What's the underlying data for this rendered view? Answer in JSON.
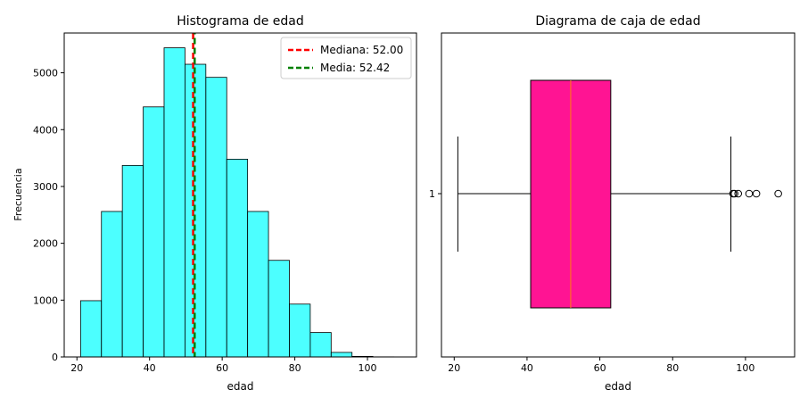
{
  "chart_data": [
    {
      "type": "bar",
      "title": "Histograma de edad",
      "xlabel": "edad",
      "ylabel": "Frecuencia",
      "xlim": [
        16.5,
        113.5
      ],
      "ylim": [
        0,
        5700
      ],
      "xticks": [
        20,
        40,
        60,
        80,
        100
      ],
      "yticks": [
        0,
        1000,
        2000,
        3000,
        4000,
        5000
      ],
      "bin_edges": [
        21,
        26.75,
        32.5,
        38.25,
        44,
        49.75,
        55.5,
        61.25,
        67,
        72.75,
        78.5,
        84.25,
        90,
        95.75,
        101.5,
        107.25,
        113
      ],
      "values": [
        990,
        2560,
        3370,
        4400,
        5440,
        5150,
        4920,
        3480,
        2560,
        1700,
        930,
        430,
        80,
        10,
        2,
        1
      ],
      "bar_color": "#00ffff",
      "median_line": {
        "value": 52.0,
        "color": "#ff0000"
      },
      "mean_line": {
        "value": 52.42,
        "color": "#008000"
      },
      "legend": {
        "position": "top-right",
        "entries": [
          "Mediana: 52.00",
          "Media: 52.42"
        ]
      }
    },
    {
      "type": "box",
      "title": "Diagrama de caja de edad",
      "xlabel": "edad",
      "xlim": [
        16.5,
        113.5
      ],
      "xticks": [
        20,
        40,
        60,
        80,
        100
      ],
      "ytick_labels": [
        "1"
      ],
      "stats": {
        "whisker_low": 21,
        "q1": 41,
        "median": 52,
        "q3": 63,
        "whisker_high": 96
      },
      "outliers": [
        96.6,
        97,
        98,
        101,
        103,
        109
      ],
      "box_color": "#ff1493",
      "median_color": "#ff7f0e"
    }
  ]
}
